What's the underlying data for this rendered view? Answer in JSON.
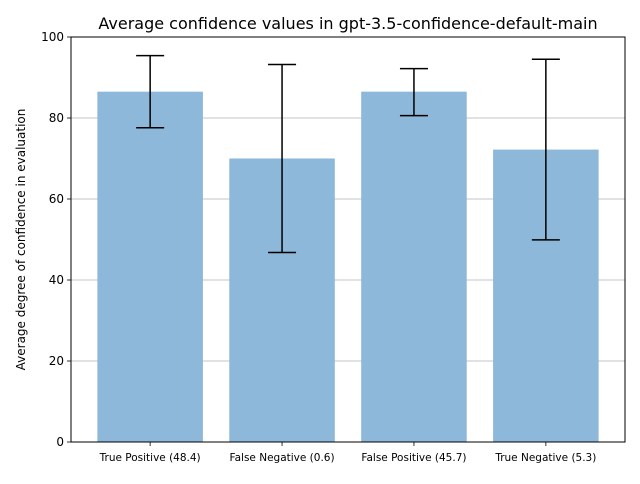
{
  "chart_data": {
    "type": "bar",
    "title": "Average confidence values in gpt-3.5-confidence-default-main",
    "xlabel": "",
    "ylabel": "Average degree of confidence in evaluation",
    "categories": [
      "True Positive (48.4)",
      "False Negative (0.6)",
      "False Positive (45.7)",
      "True Negative (5.3)"
    ],
    "values": [
      86.5,
      70.0,
      86.5,
      72.2
    ],
    "error_low": [
      77.6,
      46.8,
      80.6,
      49.9
    ],
    "error_high": [
      95.4,
      93.2,
      92.2,
      94.5
    ],
    "ylim": [
      0,
      100
    ],
    "yticks": [
      0,
      20,
      40,
      60,
      80,
      100
    ],
    "grid": "horizontal",
    "bar_color": "#8db8d9",
    "error_color": "#000000",
    "grid_color": "#b0b0b0"
  }
}
